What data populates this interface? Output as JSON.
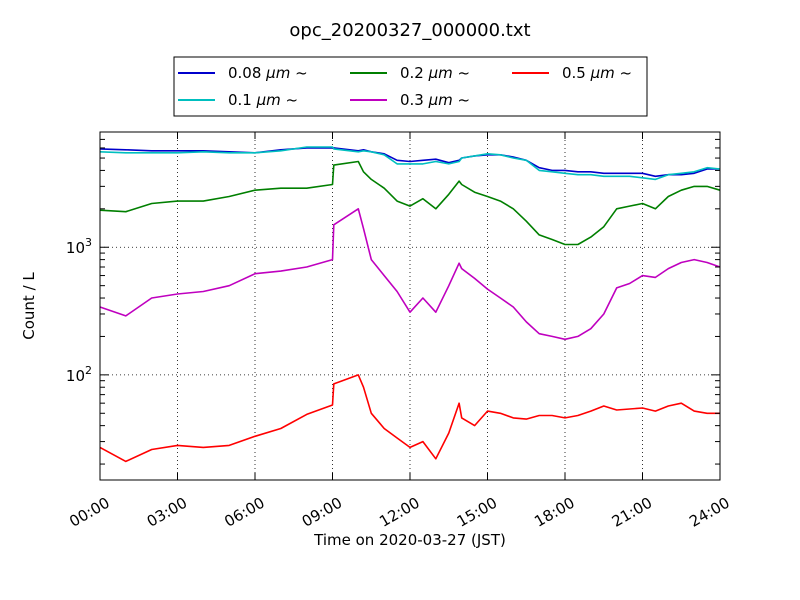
{
  "chart_data": {
    "type": "line",
    "title": "opc_20200327_000000.txt",
    "xlabel": "Time on 2020-03-27 (JST)",
    "ylabel": "Count / L",
    "xlim": [
      "00:00",
      "24:00"
    ],
    "ylim": [
      15,
      8000
    ],
    "yscale": "log",
    "grid": true,
    "legend_position": "top-center",
    "x_ticks": [
      "00:00",
      "03:00",
      "06:00",
      "09:00",
      "12:00",
      "15:00",
      "18:00",
      "21:00",
      "24:00"
    ],
    "y_ticks": [
      {
        "value": 100,
        "label": "10",
        "exponent": "2"
      },
      {
        "value": 1000,
        "label": "10",
        "exponent": "3"
      }
    ],
    "x_hours": [
      0,
      1,
      2,
      3,
      4,
      5,
      6,
      7,
      8,
      9,
      9.05,
      10,
      10.2,
      10.5,
      11,
      11.5,
      12,
      12.5,
      13,
      13.5,
      13.9,
      14,
      14.5,
      15,
      15.5,
      16,
      16.5,
      17,
      17.5,
      18,
      18.5,
      19,
      19.5,
      20,
      20.5,
      21,
      21.5,
      22,
      22.5,
      23,
      23.5,
      24
    ],
    "series": [
      {
        "name": "0.08",
        "unit": "μm",
        "suffix": "~",
        "color": "#0000cc",
        "values": [
          5900,
          5800,
          5700,
          5700,
          5700,
          5600,
          5500,
          5800,
          6000,
          6000,
          6000,
          5700,
          5800,
          5600,
          5400,
          4800,
          4700,
          4800,
          4900,
          4600,
          4800,
          5000,
          5200,
          5300,
          5300,
          5100,
          4800,
          4200,
          4000,
          4000,
          3900,
          3900,
          3800,
          3800,
          3800,
          3800,
          3600,
          3700,
          3700,
          3800,
          4100,
          4100
        ]
      },
      {
        "name": "0.1",
        "unit": "μm",
        "suffix": "~",
        "color": "#00bfbf",
        "values": [
          5600,
          5500,
          5500,
          5500,
          5600,
          5500,
          5500,
          5700,
          6100,
          6100,
          5900,
          5600,
          5700,
          5600,
          5300,
          4500,
          4500,
          4500,
          4700,
          4500,
          4700,
          5000,
          5200,
          5400,
          5300,
          5000,
          4800,
          4000,
          3900,
          3800,
          3700,
          3700,
          3600,
          3600,
          3600,
          3500,
          3400,
          3700,
          3800,
          3900,
          4200,
          4100
        ]
      },
      {
        "name": "0.2",
        "unit": "μm",
        "suffix": "~",
        "color": "#007f00",
        "values": [
          1950,
          1900,
          2200,
          2300,
          2300,
          2500,
          2800,
          2900,
          2900,
          3100,
          4400,
          4700,
          3900,
          3400,
          2900,
          2300,
          2100,
          2400,
          2000,
          2600,
          3300,
          3100,
          2700,
          2500,
          2300,
          2000,
          1600,
          1250,
          1150,
          1050,
          1050,
          1200,
          1450,
          2000,
          2100,
          2200,
          2000,
          2500,
          2800,
          3000,
          3000,
          2800
        ]
      },
      {
        "name": "0.3",
        "unit": "μm",
        "suffix": "~",
        "color": "#bf00bf",
        "values": [
          340,
          290,
          400,
          430,
          450,
          500,
          620,
          650,
          700,
          800,
          1500,
          2000,
          1400,
          800,
          600,
          450,
          310,
          400,
          310,
          500,
          750,
          680,
          570,
          470,
          400,
          340,
          260,
          210,
          200,
          190,
          200,
          230,
          300,
          480,
          520,
          600,
          580,
          680,
          760,
          800,
          760,
          700
        ]
      },
      {
        "name": "0.5",
        "unit": "μm",
        "suffix": "~",
        "color": "#ff0000",
        "values": [
          27,
          21,
          26,
          28,
          27,
          28,
          33,
          38,
          49,
          58,
          85,
          100,
          80,
          50,
          38,
          32,
          27,
          30,
          22,
          35,
          60,
          46,
          40,
          52,
          50,
          46,
          45,
          48,
          48,
          46,
          48,
          52,
          57,
          53,
          54,
          55,
          52,
          57,
          60,
          52,
          50,
          50
        ]
      }
    ]
  }
}
